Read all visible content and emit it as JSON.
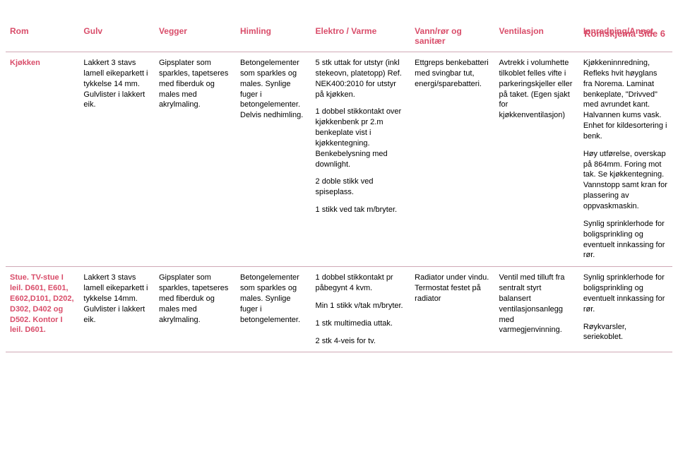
{
  "page_label": "Romskjema Side 6",
  "accent_color": "#d94d6a",
  "header_border_color": "#d0a9b5",
  "columns": [
    {
      "key": "rom",
      "label": "Rom"
    },
    {
      "key": "gulv",
      "label": "Gulv"
    },
    {
      "key": "vegger",
      "label": "Vegger"
    },
    {
      "key": "himling",
      "label": "Himling"
    },
    {
      "key": "elektro",
      "label": "Elektro / Varme"
    },
    {
      "key": "vann",
      "label": "Vann/rør og sanitær"
    },
    {
      "key": "vent",
      "label": "Ventilasjon"
    },
    {
      "key": "innr",
      "label": "Innredning/Annet"
    }
  ],
  "rows": [
    {
      "room": "Kjøkken",
      "gulv": [
        "Lakkert 3 stavs lamell eikeparkett i tykkelse 14 mm. Gulvlister i lakkert eik."
      ],
      "vegger": [
        "Gipsplater som sparkles, tapetseres med fiberduk og males med akrylmaling."
      ],
      "himling": [
        "Betongelementer som sparkles og males. Synlige fuger i betongelementer. Delvis nedhimling."
      ],
      "elektro": [
        "5 stk uttak for utstyr (inkl stekeovn, platetopp) Ref. NEK400:2010 for utstyr på kjøkken.",
        "1 dobbel stikkontakt over kjøkkenbenk pr 2.m benkeplate vist i kjøkkentegning. Benkebelysning med downlight.",
        "2 doble stikk ved spiseplass.",
        "1 stikk ved tak m/bryter."
      ],
      "vann": [
        "Ettgreps benkebatteri med svingbar tut, energi/sparebatteri."
      ],
      "vent": [
        "Avtrekk i volumhette tilkoblet felles vifte i parkeringskjeller eller på taket. (Egen sjakt for kjøkkenventilasjon)"
      ],
      "innr": [
        "Kjøkkeninnredning, Refleks hvit høyglans fra Norema. Laminat benkeplate, \"Drivved\" med avrundet kant. Halvannen kums vask. Enhet for kildesortering i benk.",
        "Høy utførelse, overskap på 864mm. Foring mot tak. Se kjøkkentegning. Vannstopp samt kran for plassering av oppvaskmaskin.",
        "Synlig sprinklerhode for boligsprinkling og eventuelt innkassing for rør."
      ]
    },
    {
      "room": "Stue. TV-stue I leil. D601, E601, E602,D101, D202, D302, D402 og D502. Kontor I leil. D601.",
      "gulv": [
        "Lakkert 3 stavs lamell eikeparkett i tykkelse 14mm. Gulvlister i lakkert eik."
      ],
      "vegger": [
        "Gipsplater som sparkles, tapetseres med fiberduk og males med akrylmaling."
      ],
      "himling": [
        "Betongelementer som sparkles og males. Synlige fuger i betongelementer."
      ],
      "elektro": [
        "1 dobbel stikkontakt pr påbegynt 4 kvm.",
        "Min 1 stikk v/tak m/bryter.",
        "1 stk multimedia uttak.",
        "2 stk 4-veis for tv."
      ],
      "vann": [
        "Radiator under vindu. Termostat festet på radiator"
      ],
      "vent": [
        "Ventil med tilluft fra sentralt styrt balansert ventilasjonsanlegg med varmegjenvinning."
      ],
      "innr": [
        "Synlig sprinklerhode for boligsprinkling og eventuelt innkassing for rør.",
        "Røykvarsler, seriekoblet."
      ]
    }
  ]
}
